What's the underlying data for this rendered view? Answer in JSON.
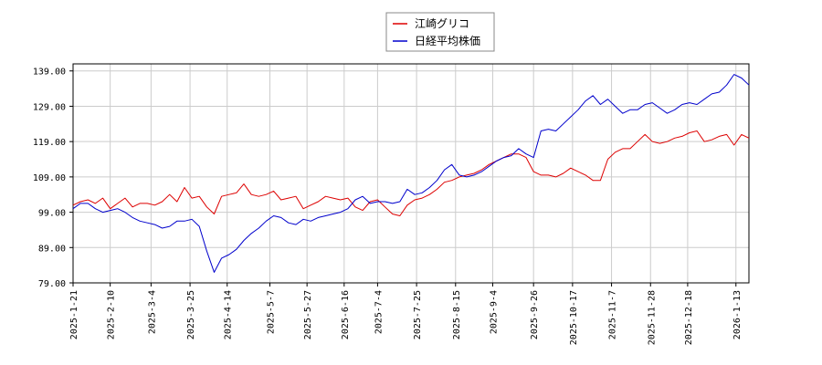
{
  "chart_data": {
    "type": "line",
    "x": [
      "2025-1-21",
      "2025-1-25",
      "2025-1-29",
      "2025-2-2",
      "2025-2-6",
      "2025-2-10",
      "2025-2-14",
      "2025-2-18",
      "2025-2-22",
      "2025-2-26",
      "2025-3-2",
      "2025-3-6",
      "2025-3-10",
      "2025-3-14",
      "2025-3-18",
      "2025-3-22",
      "2025-3-26",
      "2025-3-30",
      "2025-4-3",
      "2025-4-7",
      "2025-4-11",
      "2025-4-15",
      "2025-4-19",
      "2025-4-23",
      "2025-4-27",
      "2025-5-1",
      "2025-5-5",
      "2025-5-9",
      "2025-5-13",
      "2025-5-17",
      "2025-5-21",
      "2025-5-25",
      "2025-5-29",
      "2025-6-2",
      "2025-6-6",
      "2025-6-10",
      "2025-6-14",
      "2025-6-18",
      "2025-6-22",
      "2025-6-26",
      "2025-6-30",
      "2025-7-4",
      "2025-7-8",
      "2025-7-12",
      "2025-7-16",
      "2025-7-20",
      "2025-7-24",
      "2025-7-28",
      "2025-8-1",
      "2025-8-5",
      "2025-8-9",
      "2025-8-13",
      "2025-8-17",
      "2025-8-21",
      "2025-8-25",
      "2025-8-29",
      "2025-9-2",
      "2025-9-6",
      "2025-9-10",
      "2025-9-14",
      "2025-9-18",
      "2025-9-22",
      "2025-9-26",
      "2025-9-30",
      "2025-10-4",
      "2025-10-8",
      "2025-10-12",
      "2025-10-16",
      "2025-10-20",
      "2025-10-24",
      "2025-10-28",
      "2025-11-1",
      "2025-11-5",
      "2025-11-9",
      "2025-11-13",
      "2025-11-17",
      "2025-11-21",
      "2025-11-25",
      "2025-11-29",
      "2025-12-3",
      "2025-12-7",
      "2025-12-11",
      "2025-12-15",
      "2025-12-19",
      "2025-12-23",
      "2025-12-27",
      "2025-12-31",
      "2026-1-4",
      "2026-1-8",
      "2026-1-12",
      "2026-1-16",
      "2026-1-20"
    ],
    "xticks": [
      "2025-1-21",
      "2025-2-10",
      "2025-3-4",
      "2025-3-25",
      "2025-4-14",
      "2025-5-7",
      "2025-5-27",
      "2025-6-16",
      "2025-7-4",
      "2025-7-25",
      "2025-8-15",
      "2025-9-4",
      "2025-9-26",
      "2025-10-17",
      "2025-11-7",
      "2025-11-28",
      "2025-12-18",
      "2026-1-13"
    ],
    "yticks": [
      "79.00",
      "89.00",
      "99.00",
      "109.00",
      "119.00",
      "129.00",
      "139.00"
    ],
    "ylim": [
      79,
      141
    ],
    "grid": true,
    "legend_position": "top-center",
    "series": [
      {
        "name": "江崎グリコ",
        "color": "#dd0000",
        "values": [
          101,
          102,
          102.5,
          101.5,
          103,
          100,
          101.5,
          103,
          100.5,
          101.5,
          101.5,
          101,
          102,
          104,
          102,
          106,
          103,
          103.5,
          100.5,
          98.5,
          103.5,
          104,
          104.5,
          107,
          104,
          103.5,
          104,
          105,
          102.5,
          103,
          103.5,
          100,
          101,
          102,
          103.5,
          103,
          102.5,
          103,
          100.5,
          99.5,
          102,
          102.5,
          100.5,
          98.5,
          98,
          101,
          102.5,
          103,
          104,
          105.5,
          107.5,
          108,
          109,
          109.5,
          110,
          111,
          112.5,
          113.5,
          114.5,
          115.5,
          115.5,
          114.5,
          110.5,
          109.5,
          109.5,
          109,
          110,
          111.5,
          110.5,
          109.5,
          108,
          108,
          114,
          116,
          117,
          117,
          119,
          121,
          119,
          118.5,
          119,
          120,
          120.5,
          121.5,
          122,
          119,
          119.5,
          120.5,
          121,
          118,
          121,
          120
        ]
      },
      {
        "name": "日経平均株価",
        "color": "#0000cc",
        "values": [
          100,
          101.5,
          101.5,
          100,
          99,
          99.5,
          100,
          99,
          97.5,
          96.5,
          96,
          95.5,
          94.5,
          95,
          96.5,
          96.5,
          97,
          95,
          88,
          82,
          86,
          87,
          88.5,
          91,
          93,
          94.5,
          96.5,
          98,
          97.5,
          96,
          95.5,
          97,
          96.5,
          97.5,
          98,
          98.5,
          99,
          100,
          102.5,
          103.5,
          101.5,
          102,
          102,
          101.5,
          102,
          105.5,
          104,
          104.5,
          106,
          108,
          111,
          112.5,
          109.5,
          109,
          109.5,
          110.5,
          112,
          113.5,
          114.5,
          115,
          117,
          115.5,
          114.5,
          122,
          122.5,
          122,
          124,
          126,
          128,
          130.5,
          132,
          129.5,
          131,
          129,
          127,
          128,
          128,
          129.5,
          130,
          128.5,
          127,
          128,
          129.5,
          130,
          129.5,
          131,
          132.5,
          133,
          135,
          138,
          137,
          135
        ]
      }
    ]
  }
}
